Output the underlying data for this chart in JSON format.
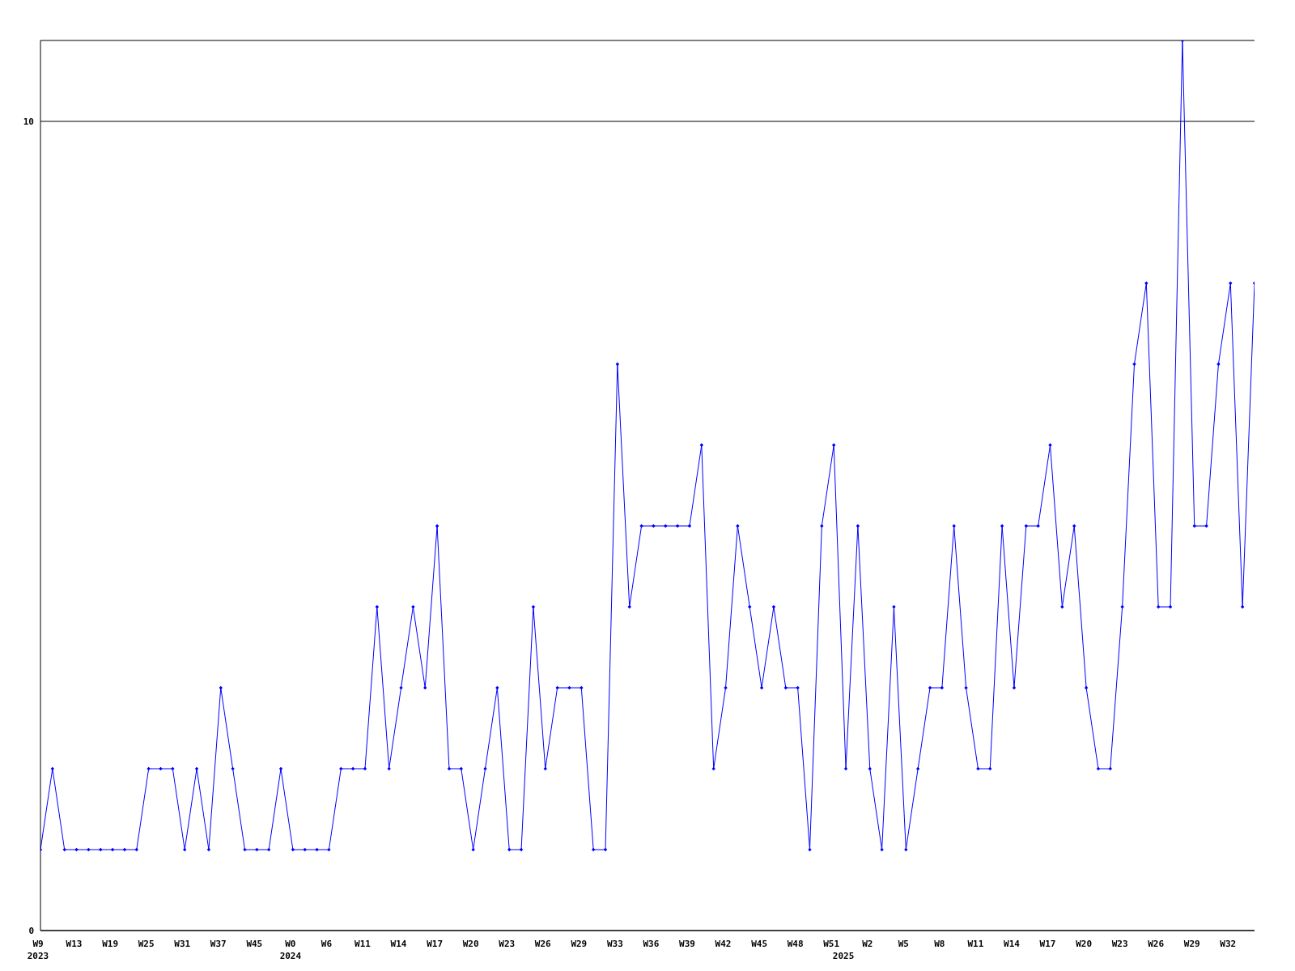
{
  "chart_data": {
    "type": "line",
    "categories": [
      "W9\n2023",
      null,
      null,
      "W13",
      null,
      null,
      "W19",
      null,
      null,
      "W25",
      null,
      null,
      "W31",
      null,
      null,
      "W37",
      null,
      null,
      "W45",
      null,
      null,
      "W0\n2024",
      null,
      null,
      "W6",
      null,
      null,
      "W11",
      null,
      null,
      "W14",
      null,
      null,
      "W17",
      null,
      null,
      "W20",
      null,
      null,
      "W23",
      null,
      null,
      "W26",
      null,
      null,
      "W29",
      null,
      null,
      "W33",
      null,
      null,
      "W36",
      null,
      null,
      "W39",
      null,
      null,
      "W42",
      null,
      null,
      "W45",
      null,
      null,
      "W48",
      null,
      null,
      "W51",
      "\n2025",
      null,
      "W2",
      null,
      null,
      "W5",
      null,
      null,
      "W8",
      null,
      null,
      "W11",
      null,
      null,
      "W14",
      null,
      null,
      "W17",
      null,
      null,
      "W20",
      null,
      null,
      "W23",
      null,
      null,
      "W26",
      null,
      null,
      "W29",
      null,
      null,
      "W32",
      null,
      null
    ],
    "series": [
      {
        "color": "#0000ff",
        "values": [
          1,
          2,
          1,
          1,
          1,
          1,
          1,
          1,
          1,
          2,
          2,
          2,
          1,
          2,
          1,
          3,
          2,
          1,
          1,
          1,
          2,
          1,
          1,
          1,
          1,
          2,
          2,
          2,
          4,
          2,
          3,
          4,
          3,
          5,
          2,
          2,
          1,
          2,
          3,
          1,
          1,
          4,
          2,
          3,
          3,
          3,
          1,
          1,
          7,
          4,
          5,
          5,
          5,
          5,
          5,
          6,
          2,
          3,
          5,
          4,
          3,
          4,
          3,
          3,
          1,
          5,
          6,
          2,
          5,
          2,
          1,
          4,
          1,
          2,
          3,
          3,
          5,
          3,
          2,
          2,
          5,
          3,
          5,
          5,
          6,
          4,
          5,
          3,
          2,
          2,
          4,
          7,
          8,
          4,
          4,
          11,
          5,
          5,
          7,
          8,
          4,
          8
        ]
      }
    ],
    "ylim": [
      0,
      11
    ],
    "yticks": [
      0,
      10
    ],
    "grid": "y",
    "marker": "diamond",
    "line_style": "solid"
  }
}
